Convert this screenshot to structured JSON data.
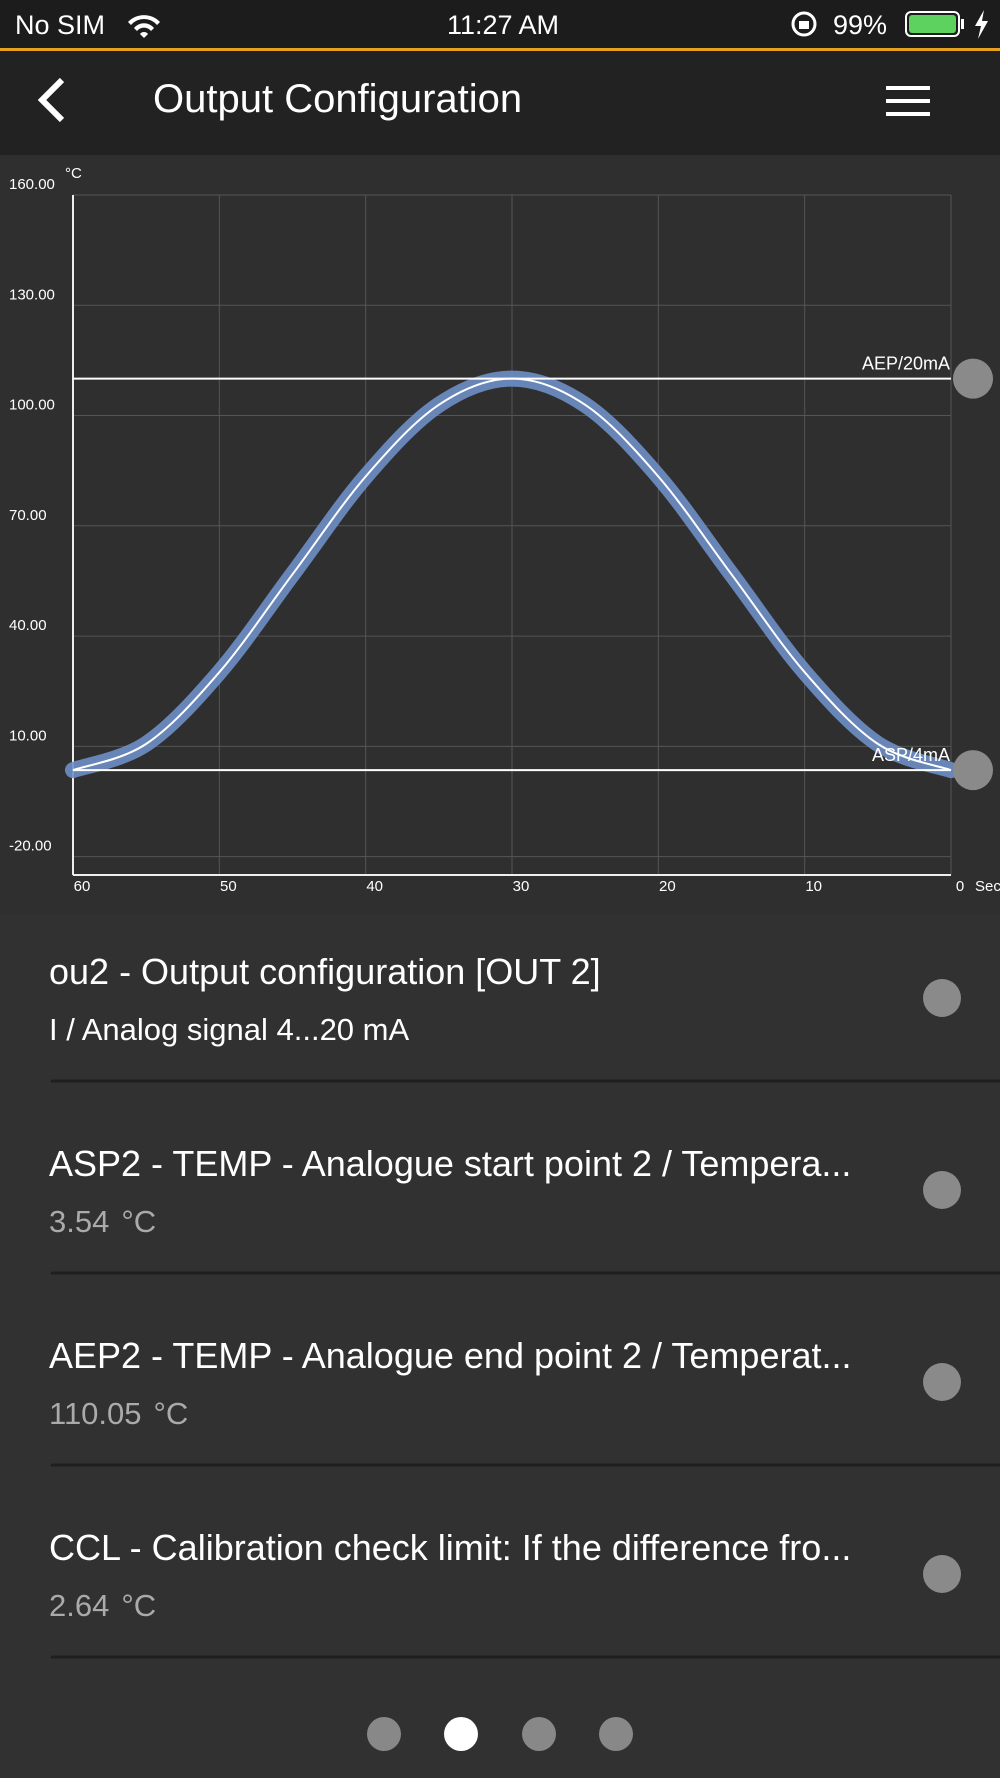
{
  "status_bar": {
    "carrier": "No SIM",
    "time": "11:27 AM",
    "battery": "99%"
  },
  "header": {
    "title": "Output Configuration"
  },
  "chart_data": {
    "type": "line",
    "y_unit": "°C",
    "x_unit": "Sec",
    "x": [
      60,
      55,
      50,
      45,
      40,
      35,
      30,
      25,
      20,
      15,
      10,
      5,
      0
    ],
    "series": [
      {
        "color": "#6f8fc8",
        "values": [
          3.54,
          10.67,
          30.17,
          56.8,
          83.42,
          102.92,
          110.05,
          102.92,
          83.42,
          56.8,
          30.17,
          10.67,
          3.54
        ]
      }
    ],
    "reference_lines": [
      {
        "label": "AEP/20mA",
        "value": 110.05
      },
      {
        "label": "ASP/4mA",
        "value": 3.54
      }
    ],
    "xlim": [
      60,
      0
    ],
    "xticks": [
      60,
      50,
      40,
      30,
      20,
      10,
      0
    ],
    "ylim": [
      -25,
      160
    ],
    "yticks": [
      {
        "value": 160,
        "label": "160.00"
      },
      {
        "value": 130,
        "label": "130.00"
      },
      {
        "value": 100,
        "label": "100.00"
      },
      {
        "value": 70,
        "label": "70.00"
      },
      {
        "value": 40,
        "label": "40.00"
      },
      {
        "value": 10,
        "label": "10.00"
      },
      {
        "value": -20,
        "label": "-20.00"
      }
    ],
    "grid": true
  },
  "items": [
    {
      "title": "ou2 - Output configuration [OUT 2]",
      "subtitle": "I / Analog signal 4...20 mA"
    },
    {
      "title": "ASP2 - TEMP - Analogue start point 2 / Tempera...",
      "value": "3.54",
      "unit": "°C"
    },
    {
      "title": "AEP2 - TEMP - Analogue end point 2 / Temperat...",
      "value": "110.05",
      "unit": "°C"
    },
    {
      "title": "CCL - Calibration check limit: If the difference fro...",
      "value": "2.64",
      "unit": "°C"
    }
  ]
}
